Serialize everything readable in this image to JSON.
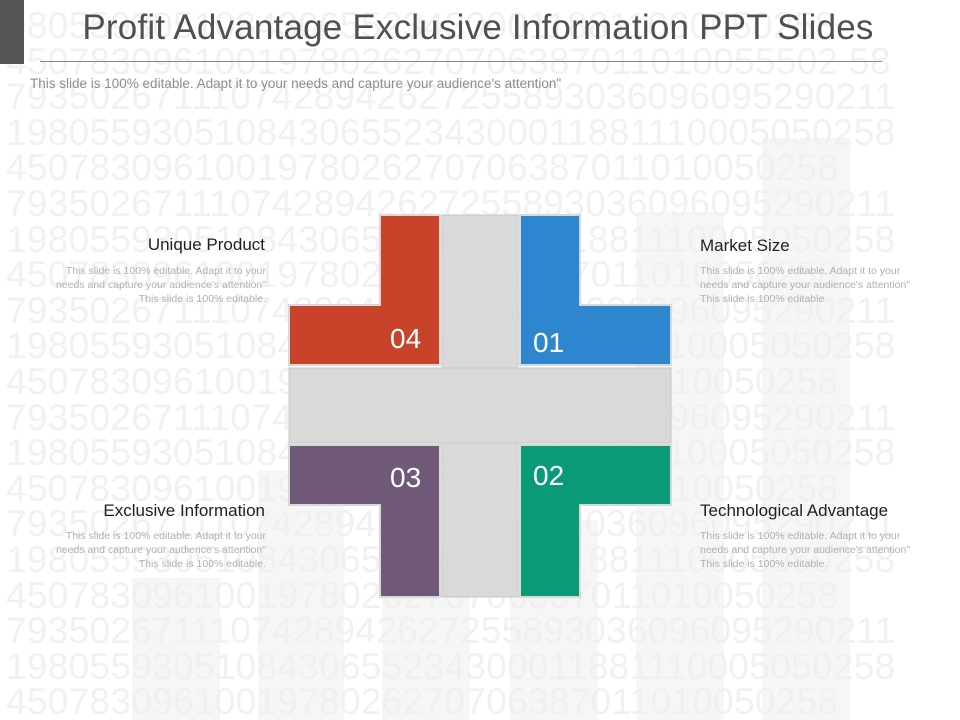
{
  "title": "Profit Advantage Exclusive Information PPT Slides",
  "subtitle": "This slide is 100% editable. Adapt it to your needs and capture your audience's attention\"",
  "background_digits": [
    "9805593051084306552343000118811000050258",
    "4507830961001978026270706387011010055502 58",
    "7935026711107428942627255893036096095290211",
    "1980559305108430655234300011881110005050258",
    "4507830961001978026270706387011010050258",
    "7935026711107428942627255893036096095290211",
    "1980559305108430655234300011881110005050258",
    "4507830961001978026270706387011010050258",
    "7935026711107428942627255893036096095290211",
    "1980559305108430655234300011881110005050258",
    "4507830961001978026270706387011010050258",
    "7935026711107428942627255893036096095290211",
    "1980559305108430655234300011881110005050258",
    "4507830961001978026270706387011010050258",
    "7935026711107428942627255893036096095290211",
    "1980559305108430655234300011881110005050258",
    "4507830961001978026270706387011010050258",
    "7935026711107428942627255893036096095290211",
    "1980559305108430655234300011881110005050258",
    "4507830961001978026270706387011010050258"
  ],
  "colors": {
    "red": "#c9432b",
    "blue": "#2e86cf",
    "purple": "#6f5878",
    "green": "#0a9a7a",
    "cross": "#d9d9d9"
  },
  "items": [
    {
      "number": "01",
      "heading": "Market Size",
      "text": "This slide is 100% editable. Adapt it to your needs and capture your audience's attention\" This slide is 100% editable."
    },
    {
      "number": "02",
      "heading": "Technological Advantage",
      "text": "This slide is 100% editable. Adapt it to your needs and capture your audience's attention\" This slide is 100% editable."
    },
    {
      "number": "03",
      "heading": "Exclusive Information",
      "text": "This slide is 100% editable. Adapt it to your needs and capture your audience's attention\" This slide is 100% editable."
    },
    {
      "number": "04",
      "heading": "Unique Product",
      "text": "This slide is 100% editable. Adapt it to your needs and capture your audience's attention\" This slide is 100% editable."
    }
  ]
}
